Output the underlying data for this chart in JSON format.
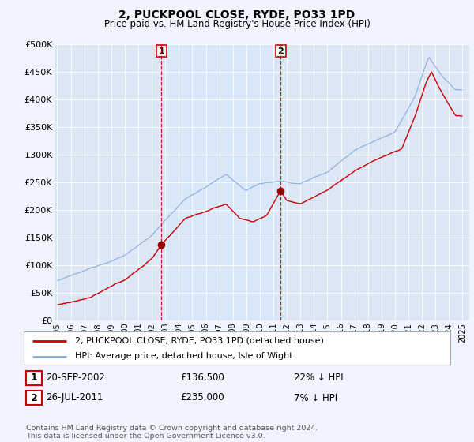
{
  "title": "2, PUCKPOOL CLOSE, RYDE, PO33 1PD",
  "subtitle": "Price paid vs. HM Land Registry's House Price Index (HPI)",
  "background_color": "#f0f4ff",
  "plot_bg_color": "#dce6f5",
  "sale1_date_label": "20-SEP-2002",
  "sale1_price_label": "£136,500",
  "sale1_hpi_label": "22% ↓ HPI",
  "sale2_date_label": "26-JUL-2011",
  "sale2_price_label": "£235,000",
  "sale2_hpi_label": "7% ↓ HPI",
  "legend_house_label": "2, PUCKPOOL CLOSE, RYDE, PO33 1PD (detached house)",
  "legend_hpi_label": "HPI: Average price, detached house, Isle of Wight",
  "footer": "Contains HM Land Registry data © Crown copyright and database right 2024.\nThis data is licensed under the Open Government Licence v3.0.",
  "house_color": "#cc0000",
  "hpi_color": "#88aadd",
  "sale_marker_color": "#990000",
  "sale_vline_color": "#cc0000",
  "shade_color": "#d8e8f8",
  "ylim": [
    0,
    500000
  ],
  "yticks": [
    0,
    50000,
    100000,
    150000,
    200000,
    250000,
    300000,
    350000,
    400000,
    450000,
    500000
  ],
  "ylabels": [
    "£0",
    "£50K",
    "£100K",
    "£150K",
    "£200K",
    "£250K",
    "£300K",
    "£350K",
    "£400K",
    "£450K",
    "£500K"
  ],
  "xlim_start": 1994.8,
  "xlim_end": 2025.5,
  "sale1_x": 2002.72,
  "sale1_y": 136500,
  "sale2_x": 2011.54,
  "sale2_y": 235000
}
